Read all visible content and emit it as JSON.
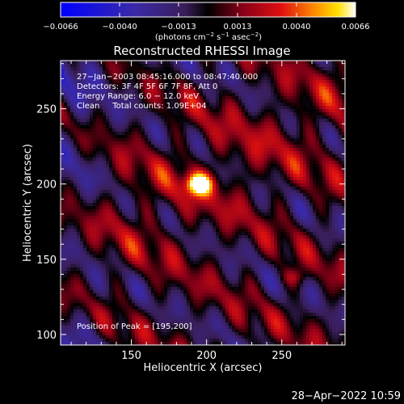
{
  "chart_data": {
    "type": "heatmap",
    "title": "Reconstructed RHESSI Image",
    "xlabel": "Heliocentric X (arcsec)",
    "ylabel": "Heliocentric Y (arcsec)",
    "xlim": [
      103,
      292
    ],
    "ylim": [
      93,
      282
    ],
    "xticks": [
      150,
      200,
      250
    ],
    "yticks": [
      100,
      150,
      200,
      250
    ],
    "colorbar": {
      "min": -0.0066,
      "max": 0.0066,
      "ticks": [
        "−0.0066",
        "−0.0040",
        "−0.0013",
        "0.0013",
        "0.0040",
        "0.0066"
      ],
      "units_prefix": "(photons cm",
      "units_exp1": "−2",
      "units_mid": " s",
      "units_exp2": "−1",
      "units_mid2": " asec",
      "units_exp3": "−2",
      "units_suffix": ")"
    },
    "peak": [
      195,
      200
    ],
    "info_lines": [
      "27−Jan−2003 08:45:16.000 to 08:47:40.000",
      "Detectors: 3F 4F 5F 6F 7F 8F, Att 0",
      "Energy Range: 6.0 − 12.0 keV",
      "Clean     Total counts: 1.09E+04"
    ],
    "peak_label": "Position of Peak = [195,200]"
  },
  "footer": {
    "timestamp": "28−Apr−2022 10:59"
  }
}
